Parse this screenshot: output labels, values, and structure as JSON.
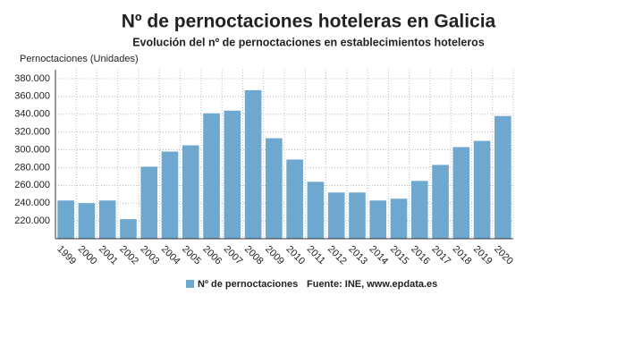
{
  "chart_data": {
    "type": "bar",
    "title": "Nº de pernoctaciones hoteleras en Galicia",
    "subtitle": "Evolución del nº de pernoctaciones en establecimientos hoteleros",
    "y_axis_label": "Pernoctaciones (Unidades)",
    "source": "Fuente: INE, www.epdata.es",
    "categories": [
      "1999",
      "2000",
      "2001",
      "2002",
      "2003",
      "2004",
      "2005",
      "2006",
      "2007",
      "2008",
      "2009",
      "2010",
      "2011",
      "2012",
      "2013",
      "2014",
      "2015",
      "2016",
      "2017",
      "2018",
      "2019",
      "2020"
    ],
    "series": [
      {
        "name": "Nº de pernoctaciones",
        "color": "#6fa8cf",
        "values": [
          243000,
          240000,
          243000,
          222000,
          281000,
          298000,
          305000,
          341000,
          344000,
          367000,
          313000,
          289000,
          264000,
          252000,
          252000,
          243000,
          245000,
          265000,
          283000,
          303000,
          310000,
          338000
        ]
      }
    ],
    "ylim": [
      200000,
      390000
    ],
    "yticks": [
      {
        "value": 220000,
        "label": "220.000"
      },
      {
        "value": 240000,
        "label": "240.000"
      },
      {
        "value": 260000,
        "label": "260.000"
      },
      {
        "value": 280000,
        "label": "280.000"
      },
      {
        "value": 300000,
        "label": "300.000"
      },
      {
        "value": 320000,
        "label": "320.000"
      },
      {
        "value": 340000,
        "label": "340.000"
      },
      {
        "value": 360000,
        "label": "360.000"
      },
      {
        "value": 380000,
        "label": "380.000"
      }
    ],
    "grid": true
  }
}
